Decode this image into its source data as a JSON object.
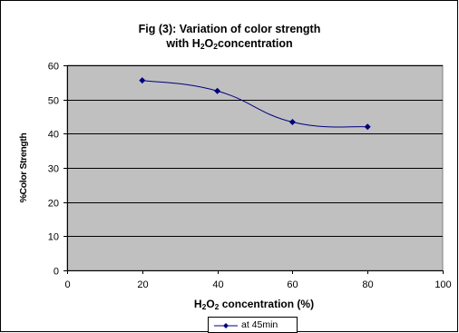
{
  "chart_data": {
    "type": "line",
    "title_line1": "Fig (3): Variation of color strength",
    "title_line2_prefix": "with H",
    "title_line2_sub1": "2",
    "title_line2_mid": "O",
    "title_line2_sub2": "2",
    "title_line2_suffix": "concentration",
    "xlabel_prefix": "H",
    "xlabel_sub1": "2",
    "xlabel_mid": "O",
    "xlabel_sub2": "2",
    "xlabel_suffix": " concentration (%)",
    "ylabel": "%Color Strength",
    "xlim": [
      0,
      100
    ],
    "ylim": [
      0,
      60
    ],
    "xticks": [
      0,
      20,
      40,
      60,
      80,
      100
    ],
    "yticks": [
      0,
      10,
      20,
      30,
      40,
      50,
      60
    ],
    "grid": "horizontal",
    "legend_position": "bottom",
    "plot_background": "#c0c0c0",
    "series": [
      {
        "name": "at 45min",
        "color": "#000080",
        "x": [
          20,
          40,
          60,
          80
        ],
        "y": [
          55.6,
          52.5,
          43.4,
          42.0
        ]
      }
    ]
  }
}
